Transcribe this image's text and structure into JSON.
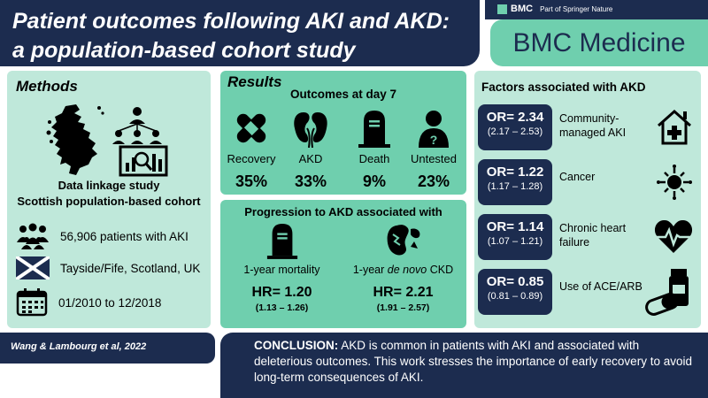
{
  "header": {
    "title_line1": "Patient outcomes following AKI and AKD:",
    "title_line2": "a population-based cohort study",
    "publisher_logo": "BMC",
    "publisher_sub": "Part of Springer Nature",
    "journal": "BMC Medicine"
  },
  "methods": {
    "heading": "Methods",
    "study_line1": "Data linkage study",
    "study_line2": "Scottish population-based cohort",
    "rows": [
      {
        "icon": "people-icon",
        "text": "56,906 patients with AKI"
      },
      {
        "icon": "scotland-flag-icon",
        "text": "Tayside/Fife, Scotland, UK"
      },
      {
        "icon": "calendar-icon",
        "text": "01/2010 to 12/2018"
      }
    ]
  },
  "results": {
    "heading": "Results",
    "subheading": "Outcomes at day 7",
    "outcomes": [
      {
        "label": "Recovery",
        "value": "35%",
        "icon": "bandage-icon"
      },
      {
        "label": "AKD",
        "value": "33%",
        "icon": "kidneys-icon"
      },
      {
        "label": "Death",
        "value": "9%",
        "icon": "tombstone-icon"
      },
      {
        "label": "Untested",
        "value": "23%",
        "icon": "unknown-person-icon"
      }
    ]
  },
  "progression": {
    "heading": "Progression to AKD associated with",
    "items": [
      {
        "label": "1-year mortality",
        "label_em": "",
        "hr": "HR= 1.20",
        "ci": "(1.13 – 1.26)",
        "icon": "tombstone-icon"
      },
      {
        "label_prefix": "1-year ",
        "label_em": "de novo",
        "label_suffix": " CKD",
        "hr": "HR= 2.21",
        "ci": "(1.91 – 2.57)",
        "icon": "damaged-kidney-icon"
      }
    ]
  },
  "factors": {
    "heading": "Factors associated with AKD",
    "rows": [
      {
        "or": "OR= 2.34",
        "ci": "(2.17 – 2.53)",
        "label": "Community-managed AKI",
        "icon": "house-medical-icon"
      },
      {
        "or": "OR= 1.22",
        "ci": "(1.17 – 1.28)",
        "label": "Cancer",
        "icon": "cancer-cell-icon"
      },
      {
        "or": "OR= 1.14",
        "ci": "(1.07 – 1.21)",
        "label": "Chronic heart failure",
        "icon": "heartbeat-icon"
      },
      {
        "or": "OR= 0.85",
        "ci": "(0.81 – 0.89)",
        "label": "Use of ACE/ARB",
        "icon": "pills-icon"
      }
    ]
  },
  "footer": {
    "author": "Wang & Lambourg et al, 2022",
    "conclusion_label": "CONCLUSION:",
    "conclusion_text": " AKD is common in patients with AKI and associated with deleterious outcomes. This work stresses the importance of early recovery to avoid long-term consequences of AKI."
  },
  "colors": {
    "navy": "#1c2c4f",
    "mint": "#bfe8da",
    "green": "#6fcfae"
  }
}
